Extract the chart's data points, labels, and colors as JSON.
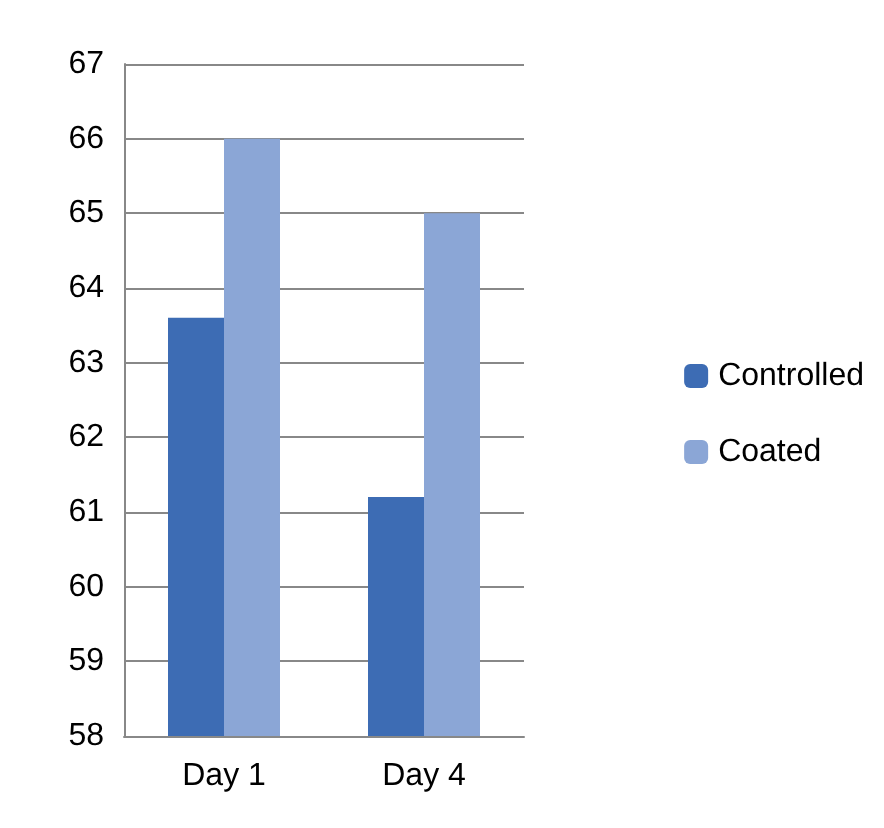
{
  "chart_data": {
    "type": "bar",
    "categories": [
      "Day 1",
      "Day 4"
    ],
    "series": [
      {
        "name": "Controlled",
        "color": "#3d6cb4",
        "values": [
          63.6,
          61.2
        ]
      },
      {
        "name": "Coated",
        "color": "#8ba6d6",
        "values": [
          66,
          65
        ]
      }
    ],
    "ylim": [
      58,
      67
    ],
    "yticks": [
      58,
      59,
      60,
      61,
      62,
      63,
      64,
      65,
      66,
      67
    ],
    "grid": "y",
    "legend": "right"
  }
}
